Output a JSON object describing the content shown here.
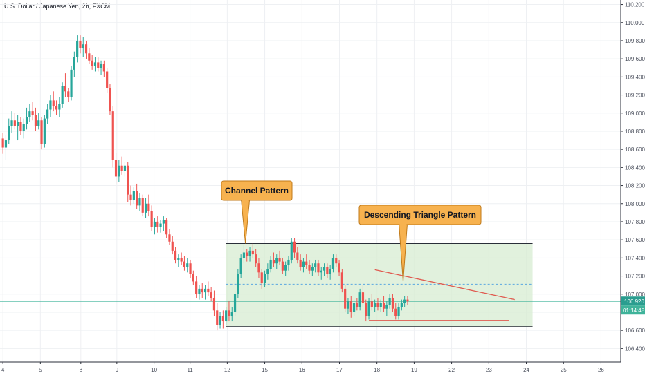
{
  "title": "U.S. Dollar / Japanese Yen, 2h, FXCM",
  "colors": {
    "up": "#26a69a",
    "down": "#ef5350",
    "grid": "#eef0f3",
    "channel_fill": "#d7ecd2",
    "channel_border": "#2a2e39",
    "triangle_line": "#e05a4f",
    "dashed_mid": "#5aa7e0",
    "current_line": "#3fb39a",
    "callout_fill": "#f7b24f",
    "callout_border": "#c07a1a"
  },
  "annotations": {
    "channel_label": "Channel Pattern",
    "triangle_label": "Descending Triangle Pattern"
  },
  "price_tag": {
    "price": "106.920",
    "countdown": "01:14:48"
  },
  "chart_data": {
    "type": "candlestick",
    "title": "U.S. Dollar / Japanese Yen, 2h, FXCM",
    "y_axis_position": "right",
    "ylim": [
      106.25,
      110.25
    ],
    "y_ticks": [
      "106.400",
      "106.600",
      "106.800",
      "107.000",
      "107.200",
      "107.400",
      "107.600",
      "107.800",
      "108.000",
      "108.200",
      "108.400",
      "108.600",
      "108.800",
      "109.000",
      "109.200",
      "109.400",
      "109.600",
      "109.800",
      "110.000",
      "110.200"
    ],
    "x_ticks": [
      {
        "label": "4",
        "t": 0.5
      },
      {
        "label": "5",
        "t": 13.1
      },
      {
        "label": "8",
        "t": 26.7
      },
      {
        "label": "9",
        "t": 38.8
      },
      {
        "label": "10",
        "t": 51.3
      },
      {
        "label": "11",
        "t": 63.4
      },
      {
        "label": "12",
        "t": 75.9
      },
      {
        "label": "15",
        "t": 88.5
      },
      {
        "label": "16",
        "t": 101.0
      },
      {
        "label": "17",
        "t": 113.6
      },
      {
        "label": "18",
        "t": 126.2
      },
      {
        "label": "19",
        "t": 138.7
      },
      {
        "label": "22",
        "t": 151.3
      },
      {
        "label": "23",
        "t": 163.8
      },
      {
        "label": "24",
        "t": 176.4
      },
      {
        "label": "25",
        "t": 188.9
      },
      {
        "label": "26",
        "t": 201.5
      }
    ],
    "current_price": 106.92,
    "channel": {
      "t_start": 75.5,
      "t_end": 178.5,
      "upper": 107.56,
      "lower": 106.64,
      "mid": 107.11
    },
    "triangle": {
      "resistance": {
        "t1": 125.5,
        "p1": 107.27,
        "t2": 172.5,
        "p2": 106.94
      },
      "support": {
        "t1": 123.5,
        "p1": 106.71,
        "t2": 170.5,
        "p2": 106.71
      }
    },
    "callouts": [
      {
        "label": "Channel Pattern",
        "anchor_t": 82,
        "anchor_p": 107.56
      },
      {
        "label": "Descending Triangle Pattern",
        "anchor_t": 135,
        "anchor_p": 107.14
      }
    ],
    "candles": [
      [
        108.72,
        108.78,
        108.55,
        108.62
      ],
      [
        108.62,
        108.76,
        108.48,
        108.7
      ],
      [
        108.7,
        108.94,
        108.66,
        108.86
      ],
      [
        108.86,
        109.02,
        108.78,
        108.92
      ],
      [
        108.92,
        109.0,
        108.82,
        108.86
      ],
      [
        108.86,
        108.98,
        108.7,
        108.9
      ],
      [
        108.9,
        108.96,
        108.76,
        108.8
      ],
      [
        108.8,
        108.94,
        108.72,
        108.88
      ],
      [
        108.88,
        109.06,
        108.82,
        108.96
      ],
      [
        108.96,
        109.1,
        108.9,
        109.02
      ],
      [
        109.02,
        109.12,
        108.92,
        108.98
      ],
      [
        108.98,
        109.06,
        108.8,
        108.86
      ],
      [
        108.86,
        109.0,
        108.82,
        108.92
      ],
      [
        108.92,
        108.96,
        108.6,
        108.66
      ],
      [
        108.66,
        108.98,
        108.62,
        108.94
      ],
      [
        108.94,
        109.1,
        108.88,
        109.04
      ],
      [
        109.04,
        109.2,
        108.96,
        109.14
      ],
      [
        109.14,
        109.24,
        109.02,
        109.08
      ],
      [
        109.08,
        109.14,
        108.98,
        109.04
      ],
      [
        109.04,
        109.18,
        108.96,
        109.1
      ],
      [
        109.1,
        109.34,
        109.06,
        109.3
      ],
      [
        109.3,
        109.44,
        109.18,
        109.24
      ],
      [
        109.24,
        109.28,
        109.12,
        109.18
      ],
      [
        109.18,
        109.52,
        109.14,
        109.48
      ],
      [
        109.48,
        109.68,
        109.4,
        109.62
      ],
      [
        109.62,
        109.86,
        109.56,
        109.8
      ],
      [
        109.8,
        109.86,
        109.66,
        109.72
      ],
      [
        109.72,
        109.84,
        109.62,
        109.76
      ],
      [
        109.76,
        109.8,
        109.6,
        109.66
      ],
      [
        109.66,
        109.72,
        109.54,
        109.58
      ],
      [
        109.58,
        109.64,
        109.48,
        109.52
      ],
      [
        109.52,
        109.62,
        109.46,
        109.56
      ],
      [
        109.56,
        109.62,
        109.46,
        109.5
      ],
      [
        109.5,
        109.58,
        109.42,
        109.54
      ],
      [
        109.54,
        109.58,
        109.4,
        109.46
      ],
      [
        109.46,
        109.5,
        109.22,
        109.28
      ],
      [
        109.28,
        109.32,
        108.98,
        109.02
      ],
      [
        109.02,
        109.08,
        108.4,
        108.48
      ],
      [
        108.48,
        108.56,
        108.22,
        108.3
      ],
      [
        108.3,
        108.48,
        108.24,
        108.42
      ],
      [
        108.42,
        108.52,
        108.32,
        108.36
      ],
      [
        108.36,
        108.46,
        108.3,
        108.42
      ],
      [
        108.42,
        108.46,
        108.02,
        108.1
      ],
      [
        108.1,
        108.2,
        107.98,
        108.04
      ],
      [
        108.04,
        108.18,
        108.0,
        108.14
      ],
      [
        108.14,
        108.22,
        107.94,
        107.98
      ],
      [
        107.98,
        108.12,
        107.92,
        108.06
      ],
      [
        108.06,
        108.1,
        107.86,
        107.9
      ],
      [
        107.9,
        108.06,
        107.84,
        108.0
      ],
      [
        108.0,
        108.1,
        107.86,
        107.92
      ],
      [
        107.92,
        107.98,
        107.7,
        107.74
      ],
      [
        107.74,
        107.84,
        107.66,
        107.8
      ],
      [
        107.8,
        107.86,
        107.68,
        107.74
      ],
      [
        107.74,
        107.82,
        107.68,
        107.78
      ],
      [
        107.78,
        107.86,
        107.7,
        107.82
      ],
      [
        107.82,
        107.84,
        107.62,
        107.66
      ],
      [
        107.66,
        107.72,
        107.54,
        107.58
      ],
      [
        107.58,
        107.64,
        107.44,
        107.48
      ],
      [
        107.48,
        107.52,
        107.34,
        107.38
      ],
      [
        107.38,
        107.44,
        107.3,
        107.4
      ],
      [
        107.4,
        107.46,
        107.32,
        107.36
      ],
      [
        107.36,
        107.42,
        107.26,
        107.3
      ],
      [
        107.3,
        107.4,
        107.24,
        107.34
      ],
      [
        107.34,
        107.38,
        107.18,
        107.22
      ],
      [
        107.22,
        107.26,
        107.1,
        107.14
      ],
      [
        107.14,
        107.2,
        106.96,
        107.0
      ],
      [
        107.0,
        107.1,
        106.94,
        107.06
      ],
      [
        107.06,
        107.12,
        106.96,
        107.02
      ],
      [
        107.02,
        107.1,
        106.94,
        107.06
      ],
      [
        107.06,
        107.14,
        106.98,
        107.02
      ],
      [
        107.02,
        107.08,
        106.92,
        106.96
      ],
      [
        106.96,
        107.04,
        106.76,
        106.82
      ],
      [
        106.82,
        106.9,
        106.6,
        106.66
      ],
      [
        106.66,
        106.8,
        106.62,
        106.76
      ],
      [
        106.76,
        106.82,
        106.62,
        106.7
      ],
      [
        106.7,
        106.86,
        106.66,
        106.82
      ],
      [
        106.82,
        106.92,
        106.7,
        106.76
      ],
      [
        106.76,
        106.86,
        106.7,
        106.8
      ],
      [
        106.8,
        107.04,
        106.76,
        107.0
      ],
      [
        107.0,
        107.28,
        106.96,
        107.22
      ],
      [
        107.22,
        107.44,
        107.18,
        107.4
      ],
      [
        107.4,
        107.54,
        107.34,
        107.46
      ],
      [
        107.46,
        107.5,
        107.36,
        107.42
      ],
      [
        107.42,
        107.52,
        107.36,
        107.48
      ],
      [
        107.48,
        107.56,
        107.4,
        107.44
      ],
      [
        107.44,
        107.5,
        107.3,
        107.34
      ],
      [
        107.34,
        107.4,
        107.18,
        107.24
      ],
      [
        107.24,
        107.28,
        107.06,
        107.12
      ],
      [
        107.12,
        107.26,
        107.08,
        107.22
      ],
      [
        107.22,
        107.34,
        107.16,
        107.28
      ],
      [
        107.28,
        107.42,
        107.24,
        107.38
      ],
      [
        107.38,
        107.46,
        107.3,
        107.34
      ],
      [
        107.34,
        107.44,
        107.28,
        107.4
      ],
      [
        107.4,
        107.48,
        107.32,
        107.36
      ],
      [
        107.36,
        107.4,
        107.22,
        107.26
      ],
      [
        107.26,
        107.36,
        107.2,
        107.32
      ],
      [
        107.32,
        107.42,
        107.26,
        107.38
      ],
      [
        107.38,
        107.62,
        107.34,
        107.58
      ],
      [
        107.58,
        107.62,
        107.4,
        107.46
      ],
      [
        107.46,
        107.52,
        107.34,
        107.38
      ],
      [
        107.38,
        107.44,
        107.26,
        107.3
      ],
      [
        107.3,
        107.4,
        107.24,
        107.36
      ],
      [
        107.36,
        107.44,
        107.28,
        107.32
      ],
      [
        107.32,
        107.38,
        107.22,
        107.26
      ],
      [
        107.26,
        107.34,
        107.2,
        107.3
      ],
      [
        107.3,
        107.38,
        107.24,
        107.34
      ],
      [
        107.34,
        107.38,
        107.2,
        107.24
      ],
      [
        107.24,
        107.3,
        107.16,
        107.26
      ],
      [
        107.26,
        107.34,
        107.2,
        107.3
      ],
      [
        107.3,
        107.34,
        107.18,
        107.22
      ],
      [
        107.22,
        107.32,
        107.16,
        107.28
      ],
      [
        107.28,
        107.44,
        107.24,
        107.4
      ],
      [
        107.4,
        107.44,
        107.3,
        107.34
      ],
      [
        107.34,
        107.38,
        107.2,
        107.24
      ],
      [
        107.24,
        107.28,
        107.02,
        107.06
      ],
      [
        107.06,
        107.1,
        106.8,
        106.84
      ],
      [
        106.84,
        106.96,
        106.78,
        106.92
      ],
      [
        106.92,
        106.98,
        106.74,
        106.8
      ],
      [
        106.8,
        106.94,
        106.76,
        106.9
      ],
      [
        106.9,
        106.96,
        106.82,
        106.86
      ],
      [
        106.86,
        107.06,
        106.82,
        107.02
      ],
      [
        107.02,
        107.1,
        106.86,
        106.9
      ],
      [
        106.9,
        106.94,
        106.7,
        106.76
      ],
      [
        106.76,
        106.96,
        106.72,
        106.92
      ],
      [
        106.92,
        107.0,
        106.82,
        106.86
      ],
      [
        106.86,
        106.94,
        106.8,
        106.9
      ],
      [
        106.9,
        106.96,
        106.82,
        106.86
      ],
      [
        106.86,
        106.94,
        106.8,
        106.9
      ],
      [
        106.9,
        106.98,
        106.8,
        106.84
      ],
      [
        106.84,
        106.92,
        106.76,
        106.88
      ],
      [
        106.88,
        107.0,
        106.84,
        106.96
      ],
      [
        106.96,
        107.0,
        106.8,
        106.84
      ],
      [
        106.84,
        106.9,
        106.72,
        106.76
      ],
      [
        106.76,
        106.9,
        106.72,
        106.86
      ],
      [
        106.86,
        106.94,
        106.82,
        106.9
      ],
      [
        106.9,
        106.98,
        106.86,
        106.94
      ],
      [
        106.94,
        106.98,
        106.88,
        106.92
      ]
    ]
  }
}
